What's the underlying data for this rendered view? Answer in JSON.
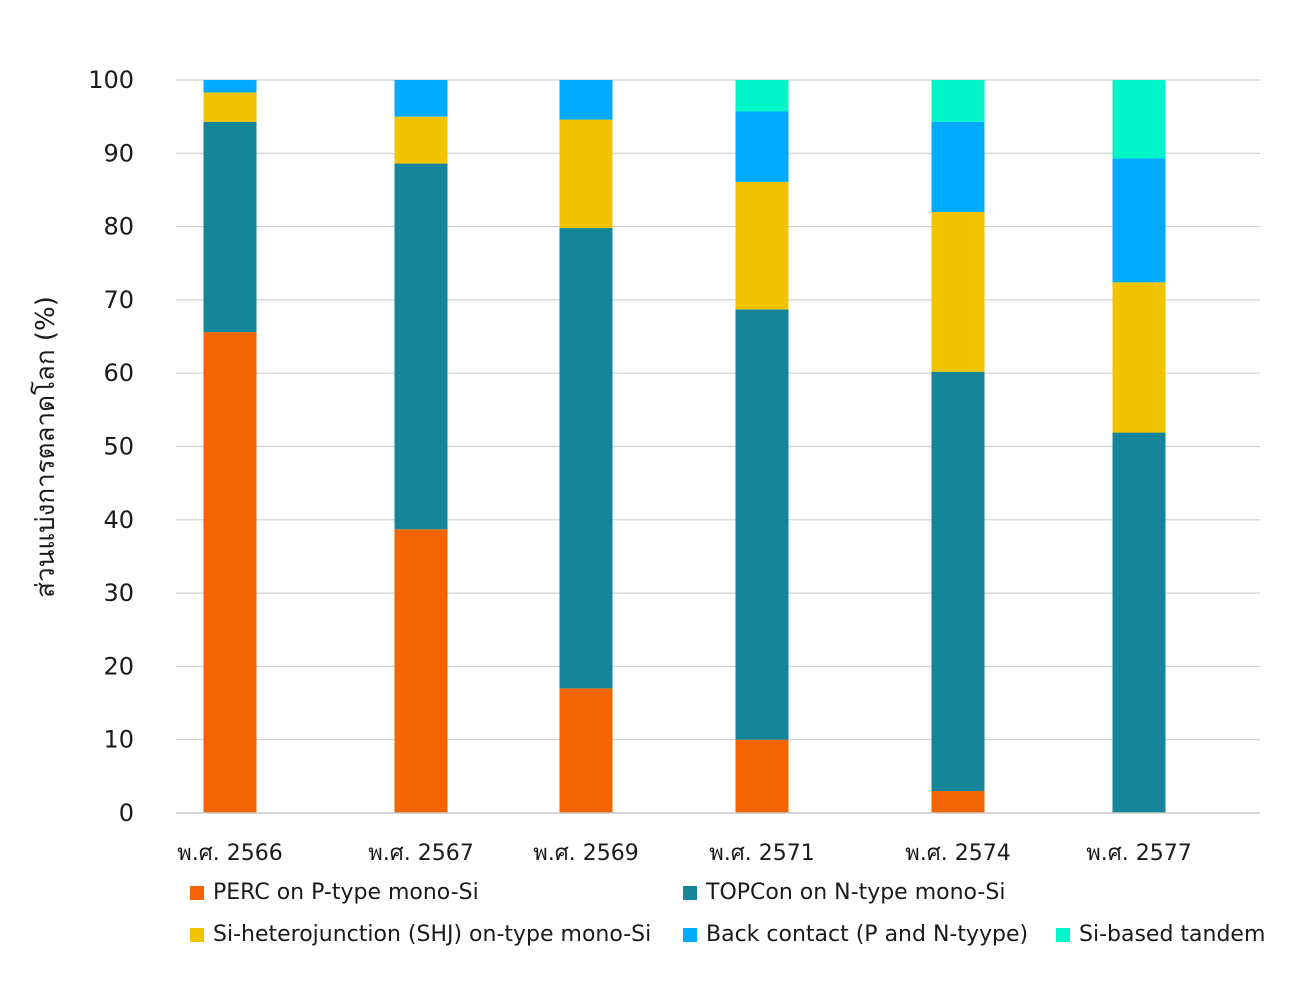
{
  "chart_data": {
    "type": "bar",
    "stacked": true,
    "title": "",
    "xlabel": "",
    "ylabel": "ส่วนแบ่งการตลาดโลก (%)",
    "ylim": [
      0,
      100
    ],
    "yticks": [
      0,
      10,
      20,
      30,
      40,
      50,
      60,
      70,
      80,
      90,
      100
    ],
    "grid": true,
    "legend_position": "bottom",
    "categories": [
      "พ.ศ. 2566",
      "พ.ศ. 2567",
      "พ.ศ. 2569",
      "พ.ศ. 2571",
      "พ.ศ. 2574",
      "พ.ศ. 2577"
    ],
    "series": [
      {
        "name": "PERC on P-type mono-Si",
        "color": "#f26500",
        "values": [
          65.6,
          38.7,
          17.0,
          10.0,
          3.0,
          0.0
        ]
      },
      {
        "name": "TOPCon on N-type mono-Si",
        "color": "#158599",
        "values": [
          28.7,
          49.9,
          62.8,
          58.7,
          57.2,
          51.9
        ]
      },
      {
        "name": "Si-heterojunction (SHJ) on-type mono-Si",
        "color": "#f1c300",
        "values": [
          4.0,
          6.4,
          14.8,
          17.4,
          21.8,
          20.5
        ]
      },
      {
        "name": "Back contact (P and N-tyype)",
        "color": "#00aaff",
        "values": [
          1.7,
          5.0,
          5.4,
          9.6,
          12.3,
          16.9
        ]
      },
      {
        "name": "Si-based tandem",
        "color": "#00f5c8",
        "values": [
          0.0,
          0.0,
          0.0,
          4.3,
          5.7,
          10.7
        ]
      }
    ]
  }
}
